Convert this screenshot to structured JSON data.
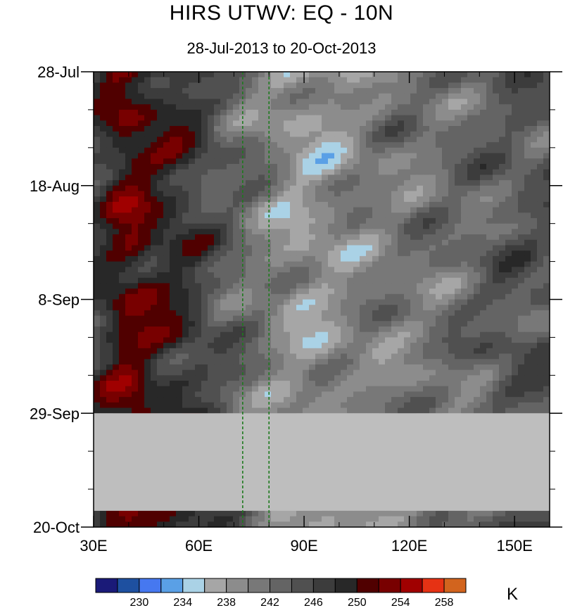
{
  "chart_data": {
    "type": "heatmap",
    "title": "HIRS UTWV: EQ - 10N",
    "subtitle": "28-Jul-2013 to 20-Oct-2013",
    "x_axis": {
      "range": [
        30,
        160
      ],
      "ticks": [
        30,
        60,
        90,
        120,
        150
      ],
      "tick_labels": [
        "30E",
        "60E",
        "90E",
        "120E",
        "150E"
      ]
    },
    "y_axis": {
      "range": [
        "2013-07-28",
        "2013-10-20"
      ],
      "ticks": [
        "2013-07-28",
        "2013-08-18",
        "2013-09-08",
        "2013-09-29",
        "2013-10-20"
      ],
      "tick_labels": [
        "28-Jul",
        "18-Aug",
        "8-Sep",
        "29-Sep",
        "20-Oct"
      ],
      "direction": "time-down"
    },
    "missing_data_period": [
      "2013-09-29",
      "2013-10-17"
    ],
    "reference_lines_lon": [
      72.5,
      80
    ],
    "reference_line_color": "#1e7a1e",
    "missing_color": "#bebebe",
    "colorbar": {
      "unit": "K",
      "levels": [
        228,
        230,
        232,
        234,
        236,
        238,
        240,
        242,
        244,
        246,
        248,
        250,
        252,
        254,
        256,
        258,
        260
      ],
      "labels": [
        "230",
        "234",
        "238",
        "242",
        "246",
        "250",
        "254",
        "258"
      ],
      "label_values": [
        230,
        234,
        238,
        242,
        246,
        250,
        254,
        258
      ],
      "colors": [
        "#1a1a78",
        "#1e50a0",
        "#4678f0",
        "#5aa0e6",
        "#aad2e6",
        "#a6a6a6",
        "#8c8c8c",
        "#787878",
        "#646464",
        "#505050",
        "#3c3c3c",
        "#282828",
        "#500000",
        "#780000",
        "#a00000",
        "#e63214",
        "#d2641e"
      ]
    }
  }
}
